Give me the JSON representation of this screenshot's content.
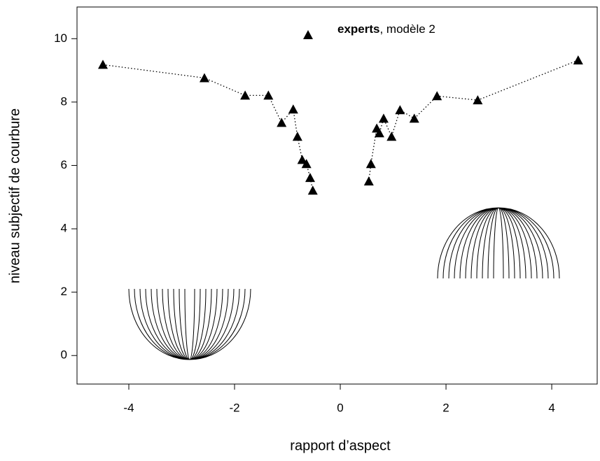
{
  "chart_data": {
    "type": "scatter",
    "x_label": "rapport d’aspect",
    "y_label": "niveau subjectif de courbure",
    "xlim": [
      -4.98,
      4.86
    ],
    "ylim": [
      -0.9,
      11
    ],
    "xticks": [
      -4,
      -2,
      0,
      2,
      4
    ],
    "yticks": [
      0,
      2,
      4,
      6,
      8,
      10
    ],
    "legend_note": ",  modèle 2",
    "series": [
      {
        "name": "experts",
        "color": "#000000",
        "x": [
          -4.49,
          -2.57,
          -1.8,
          -1.36,
          -1.11,
          -0.89,
          -0.81,
          -0.72,
          -0.64,
          -0.57,
          -0.52,
          null,
          0.54,
          0.58,
          0.69,
          0.74,
          0.82,
          0.97,
          1.13,
          1.4,
          1.83,
          2.6,
          4.5
        ],
        "values": [
          9.18,
          8.76,
          8.21,
          8.21,
          7.35,
          7.77,
          6.91,
          6.18,
          6.05,
          5.61,
          5.21,
          null,
          5.5,
          6.05,
          7.17,
          7.02,
          7.48,
          6.91,
          7.75,
          7.48,
          8.19,
          8.06,
          9.32
        ]
      }
    ]
  }
}
